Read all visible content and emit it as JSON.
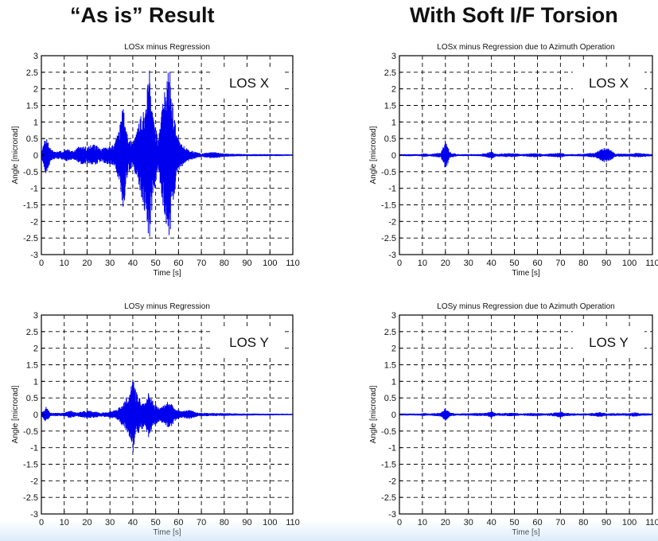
{
  "headings": {
    "left": "“As is” Result",
    "right": "With Soft I/F Torsion"
  },
  "colors": {
    "trace": "#0000ee",
    "grid": "#000000",
    "axes": "#000000"
  },
  "chart_data": [
    {
      "type": "line",
      "title": "LOSx minus Regression",
      "xlabel": "Time [s]",
      "ylabel": "Angle [microrad]",
      "annotation": "LOS X",
      "xlim": [
        0,
        110
      ],
      "ylim": [
        -3,
        3
      ],
      "xticks": [
        0,
        10,
        20,
        30,
        40,
        50,
        60,
        70,
        80,
        90,
        100,
        110
      ],
      "yticks": [
        3,
        2.5,
        2,
        1.5,
        1,
        0.5,
        0,
        -0.5,
        -1,
        -1.5,
        -2,
        -2.5,
        -3
      ],
      "grid": true,
      "series": [
        {
          "envelope": [
            [
              0,
              0.05
            ],
            [
              2,
              0.6
            ],
            [
              4,
              0.2
            ],
            [
              6,
              0.1
            ],
            [
              8,
              0.12
            ],
            [
              12,
              0.2
            ],
            [
              14,
              0.12
            ],
            [
              17,
              0.3
            ],
            [
              20,
              0.25
            ],
            [
              23,
              0.35
            ],
            [
              26,
              0.2
            ],
            [
              30,
              0.3
            ],
            [
              32,
              0.35
            ],
            [
              34,
              0.8
            ],
            [
              35,
              1.2
            ],
            [
              36,
              1.8
            ],
            [
              37,
              0.9
            ],
            [
              38,
              0.5
            ],
            [
              40,
              0.4
            ],
            [
              42,
              0.8
            ],
            [
              44,
              1.4
            ],
            [
              46,
              1.9
            ],
            [
              47,
              2.8
            ],
            [
              48,
              2.0
            ],
            [
              49,
              1.2
            ],
            [
              51,
              0.5
            ],
            [
              53,
              1.5
            ],
            [
              54,
              2.0
            ],
            [
              55,
              2.3
            ],
            [
              56,
              2.8
            ],
            [
              57,
              1.8
            ],
            [
              59,
              0.8
            ],
            [
              60,
              0.5
            ],
            [
              62,
              0.3
            ],
            [
              65,
              0.15
            ],
            [
              70,
              0.05
            ],
            [
              75,
              0.1
            ],
            [
              80,
              0.05
            ],
            [
              90,
              0.03
            ],
            [
              100,
              0.03
            ],
            [
              110,
              0.02
            ]
          ]
        }
      ]
    },
    {
      "type": "line",
      "title": "LOSx minus Regression due to Azimuth Operation",
      "xlabel": "Time [s]",
      "ylabel": "Angle [microrad]",
      "annotation": "LOS X",
      "xlim": [
        0,
        110
      ],
      "ylim": [
        -3,
        3
      ],
      "xticks": [
        0,
        10,
        20,
        30,
        40,
        50,
        60,
        70,
        80,
        90,
        100,
        110
      ],
      "yticks": [
        3,
        2.5,
        2,
        1.5,
        1,
        0.5,
        0,
        -0.5,
        -1,
        -1.5,
        -2,
        -2.5,
        -3
      ],
      "grid": true,
      "series": [
        {
          "envelope": [
            [
              0,
              0.03
            ],
            [
              9,
              0.03
            ],
            [
              11,
              0.06
            ],
            [
              13,
              0.03
            ],
            [
              18,
              0.08
            ],
            [
              20,
              0.45
            ],
            [
              22,
              0.1
            ],
            [
              25,
              0.03
            ],
            [
              35,
              0.03
            ],
            [
              38,
              0.07
            ],
            [
              40,
              0.12
            ],
            [
              42,
              0.04
            ],
            [
              47,
              0.06
            ],
            [
              50,
              0.06
            ],
            [
              53,
              0.03
            ],
            [
              58,
              0.06
            ],
            [
              60,
              0.06
            ],
            [
              63,
              0.03
            ],
            [
              70,
              0.08
            ],
            [
              73,
              0.03
            ],
            [
              80,
              0.04
            ],
            [
              85,
              0.08
            ],
            [
              89,
              0.22
            ],
            [
              91,
              0.2
            ],
            [
              94,
              0.05
            ],
            [
              100,
              0.04
            ],
            [
              103,
              0.07
            ],
            [
              110,
              0.03
            ]
          ]
        }
      ]
    },
    {
      "type": "line",
      "title": "LOSy minus Regression",
      "xlabel": "Time [s]",
      "ylabel": "Angle [microrad]",
      "annotation": "LOS Y",
      "xlim": [
        0,
        110
      ],
      "ylim": [
        -3,
        3
      ],
      "xticks": [
        0,
        10,
        20,
        30,
        40,
        50,
        60,
        70,
        80,
        90,
        100,
        110
      ],
      "yticks": [
        3,
        2.5,
        2,
        1.5,
        1,
        0.5,
        0,
        -0.5,
        -1,
        -1.5,
        -2,
        -2.5,
        -3
      ],
      "grid": true,
      "series": [
        {
          "envelope": [
            [
              0,
              0.05
            ],
            [
              2,
              0.25
            ],
            [
              4,
              0.05
            ],
            [
              10,
              0.05
            ],
            [
              13,
              0.12
            ],
            [
              15,
              0.06
            ],
            [
              20,
              0.12
            ],
            [
              23,
              0.1
            ],
            [
              26,
              0.06
            ],
            [
              30,
              0.1
            ],
            [
              33,
              0.15
            ],
            [
              35,
              0.3
            ],
            [
              37,
              0.5
            ],
            [
              39,
              0.8
            ],
            [
              40,
              1.2
            ],
            [
              41,
              0.8
            ],
            [
              43,
              0.5
            ],
            [
              45,
              0.4
            ],
            [
              47,
              0.7
            ],
            [
              48,
              0.5
            ],
            [
              50,
              0.3
            ],
            [
              52,
              0.2
            ],
            [
              55,
              0.4
            ],
            [
              57,
              0.35
            ],
            [
              59,
              0.15
            ],
            [
              62,
              0.1
            ],
            [
              65,
              0.15
            ],
            [
              68,
              0.06
            ],
            [
              72,
              0.05
            ],
            [
              80,
              0.04
            ],
            [
              90,
              0.03
            ],
            [
              110,
              0.02
            ]
          ]
        }
      ]
    },
    {
      "type": "line",
      "title": "LOSy minus Regression due to Azimuth Operation",
      "xlabel": "Time [s]",
      "ylabel": "Angle [microrad]",
      "annotation": "LOS Y",
      "xlim": [
        0,
        110
      ],
      "ylim": [
        -3,
        3
      ],
      "xticks": [
        0,
        10,
        20,
        30,
        40,
        50,
        60,
        70,
        80,
        90,
        100,
        110
      ],
      "yticks": [
        3,
        2.5,
        2,
        1.5,
        1,
        0.5,
        0,
        -0.5,
        -1,
        -1.5,
        -2,
        -2.5,
        -3
      ],
      "grid": true,
      "series": [
        {
          "envelope": [
            [
              0,
              0.03
            ],
            [
              9,
              0.03
            ],
            [
              11,
              0.05
            ],
            [
              13,
              0.03
            ],
            [
              18,
              0.06
            ],
            [
              20,
              0.22
            ],
            [
              22,
              0.06
            ],
            [
              25,
              0.03
            ],
            [
              38,
              0.05
            ],
            [
              40,
              0.1
            ],
            [
              42,
              0.04
            ],
            [
              48,
              0.05
            ],
            [
              50,
              0.05
            ],
            [
              53,
              0.03
            ],
            [
              58,
              0.05
            ],
            [
              60,
              0.05
            ],
            [
              63,
              0.03
            ],
            [
              68,
              0.06
            ],
            [
              70,
              0.1
            ],
            [
              72,
              0.05
            ],
            [
              78,
              0.03
            ],
            [
              85,
              0.05
            ],
            [
              87,
              0.08
            ],
            [
              90,
              0.04
            ],
            [
              100,
              0.04
            ],
            [
              102,
              0.07
            ],
            [
              105,
              0.04
            ],
            [
              110,
              0.03
            ]
          ]
        }
      ]
    }
  ]
}
